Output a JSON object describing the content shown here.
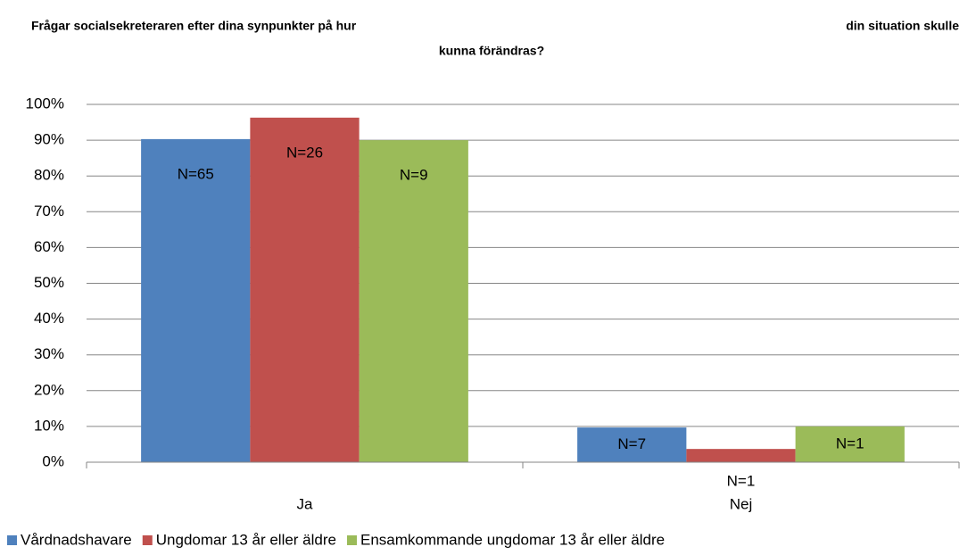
{
  "chart_data": {
    "type": "bar",
    "title": [
      "Frågar socialsekreteraren efter dina synpunkter på hur",
      "din situation skulle",
      "kunna förändras?"
    ],
    "categories": [
      "Ja",
      "Nej"
    ],
    "series": [
      {
        "name": "Vårdnadshavare",
        "color": "#4f81bd",
        "values": [
          90.3,
          9.7
        ],
        "n_labels": [
          "N=65",
          "N=7"
        ]
      },
      {
        "name": "Ungdomar 13 år eller äldre",
        "color": "#c0504d",
        "values": [
          96.3,
          3.7
        ],
        "n_labels": [
          "N=26",
          "N=1"
        ]
      },
      {
        "name": "Ensamkommande ungdomar 13 år eller äldre",
        "color": "#9bbb59",
        "values": [
          90,
          10
        ],
        "n_labels": [
          "N=9",
          "N=1"
        ]
      }
    ],
    "ylim": [
      0,
      100
    ],
    "yticks": [
      {
        "value": 0,
        "label": "0%"
      },
      {
        "value": 10,
        "label": "10%"
      },
      {
        "value": 20,
        "label": "20%"
      },
      {
        "value": 30,
        "label": "30%"
      },
      {
        "value": 40,
        "label": "40%"
      },
      {
        "value": 50,
        "label": "50%"
      },
      {
        "value": 60,
        "label": "60%"
      },
      {
        "value": 70,
        "label": "70%"
      },
      {
        "value": 80,
        "label": "80%"
      },
      {
        "value": 90,
        "label": "90%"
      },
      {
        "value": 100,
        "label": "100%"
      }
    ],
    "grid": true,
    "legend": "bottom"
  }
}
